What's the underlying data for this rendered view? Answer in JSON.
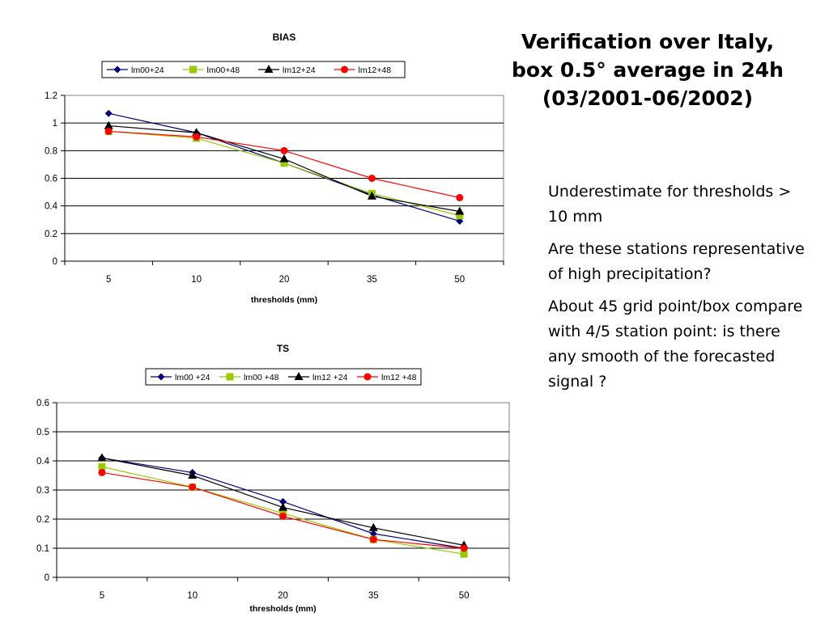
{
  "slide": {
    "title": "Verification over Italy,\nbox 0.5° average in 24h\n(03/2001-06/2002)",
    "notes": [
      "Underestimate for thresholds > 10 mm",
      "Are these stations representative of high precipitation?",
      "About 45 grid point/box compare with 4/5 station point: is there any smooth of the forecasted signal ?"
    ]
  },
  "chart_data": [
    {
      "type": "line",
      "title": "BIAS",
      "xlabel": "thresholds (mm)",
      "ylabel": "",
      "categories": [
        "5",
        "10",
        "20",
        "35",
        "50"
      ],
      "ylim": [
        0,
        1.2
      ],
      "yticks": [
        "0",
        "0.2",
        "0.4",
        "0.6",
        "0.8",
        "1",
        "1.2"
      ],
      "grid": true,
      "legend_position": "top",
      "series": [
        {
          "name": "lm00+24",
          "color": "#000080",
          "marker": "diamond",
          "values": [
            1.07,
            0.93,
            0.71,
            0.48,
            0.29
          ]
        },
        {
          "name": "lm00+48",
          "color": "#99cc00",
          "marker": "square",
          "values": [
            0.94,
            0.89,
            0.71,
            0.49,
            0.33
          ]
        },
        {
          "name": "lm12+24",
          "color": "#000000",
          "marker": "triangle",
          "values": [
            0.98,
            0.93,
            0.74,
            0.47,
            0.36
          ]
        },
        {
          "name": "lm12+48",
          "color": "#ff0000",
          "marker": "circle",
          "values": [
            0.94,
            0.9,
            0.8,
            0.6,
            0.46
          ]
        }
      ]
    },
    {
      "type": "line",
      "title": "TS",
      "xlabel": "thresholds (mm)",
      "ylabel": "",
      "categories": [
        "5",
        "10",
        "20",
        "35",
        "50"
      ],
      "ylim": [
        0,
        0.6
      ],
      "yticks": [
        "0",
        "0.1",
        "0.2",
        "0.3",
        "0.4",
        "0.5",
        "0.6"
      ],
      "grid": true,
      "legend_position": "top",
      "series": [
        {
          "name": "lm00 +24",
          "color": "#000080",
          "marker": "diamond",
          "values": [
            0.41,
            0.36,
            0.26,
            0.15,
            0.1
          ]
        },
        {
          "name": "lm00 +48",
          "color": "#99cc00",
          "marker": "square",
          "values": [
            0.38,
            0.31,
            0.22,
            0.13,
            0.08
          ]
        },
        {
          "name": "lm12 +24",
          "color": "#000000",
          "marker": "triangle",
          "values": [
            0.41,
            0.35,
            0.24,
            0.17,
            0.11
          ]
        },
        {
          "name": "lm12 +48",
          "color": "#ff0000",
          "marker": "circle",
          "values": [
            0.36,
            0.31,
            0.21,
            0.13,
            0.1
          ]
        }
      ]
    }
  ]
}
